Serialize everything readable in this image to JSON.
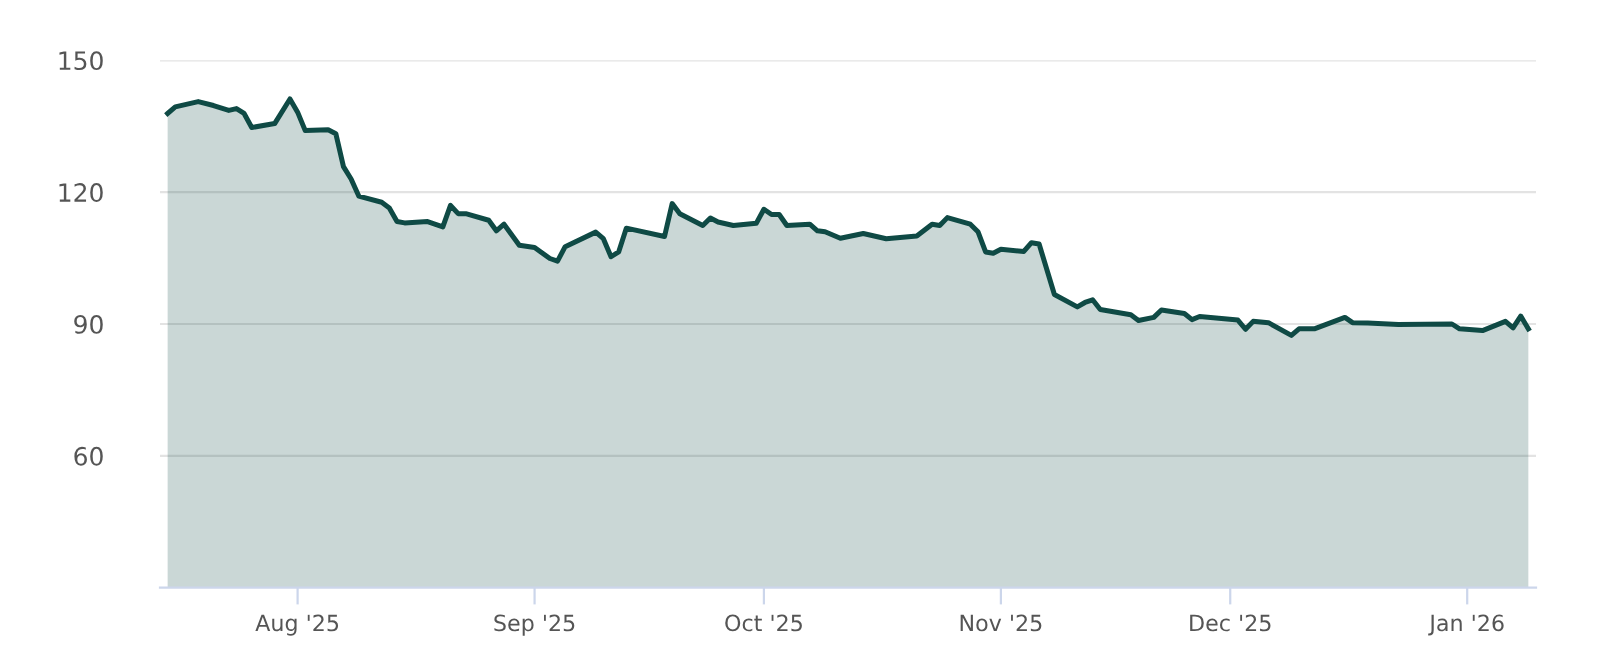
{
  "chart_data": {
    "type": "area",
    "x": [
      "2025-07-15",
      "2025-07-16",
      "2025-07-19",
      "2025-07-21",
      "2025-07-23",
      "2025-07-24",
      "2025-07-25",
      "2025-07-26",
      "2025-07-29",
      "2025-07-31",
      "2025-08-01",
      "2025-08-02",
      "2025-08-05",
      "2025-08-06",
      "2025-08-07",
      "2025-08-08",
      "2025-08-09",
      "2025-08-12",
      "2025-08-13",
      "2025-08-14",
      "2025-08-15",
      "2025-08-18",
      "2025-08-20",
      "2025-08-21",
      "2025-08-22",
      "2025-08-23",
      "2025-08-26",
      "2025-08-27",
      "2025-08-28",
      "2025-08-30",
      "2025-09-01",
      "2025-09-03",
      "2025-09-04",
      "2025-09-05",
      "2025-09-09",
      "2025-09-10",
      "2025-09-11",
      "2025-09-12",
      "2025-09-13",
      "2025-09-18",
      "2025-09-19",
      "2025-09-20",
      "2025-09-23",
      "2025-09-24",
      "2025-09-25",
      "2025-09-27",
      "2025-09-30",
      "2025-10-01",
      "2025-10-02",
      "2025-10-03",
      "2025-10-04",
      "2025-10-07",
      "2025-10-08",
      "2025-10-09",
      "2025-10-11",
      "2025-10-14",
      "2025-10-17",
      "2025-10-21",
      "2025-10-23",
      "2025-10-24",
      "2025-10-25",
      "2025-10-28",
      "2025-10-29",
      "2025-10-30",
      "2025-10-31",
      "2025-11-01",
      "2025-11-04",
      "2025-11-05",
      "2025-11-06",
      "2025-11-08",
      "2025-11-11",
      "2025-11-12",
      "2025-11-13",
      "2025-11-14",
      "2025-11-18",
      "2025-11-19",
      "2025-11-21",
      "2025-11-22",
      "2025-11-25",
      "2025-11-26",
      "2025-11-27",
      "2025-12-02",
      "2025-12-03",
      "2025-12-04",
      "2025-12-06",
      "2025-12-09",
      "2025-12-10",
      "2025-12-12",
      "2025-12-16",
      "2025-12-17",
      "2025-12-19",
      "2025-12-23",
      "2025-12-30",
      "2025-12-31",
      "2026-01-03",
      "2026-01-06",
      "2026-01-07",
      "2026-01-08",
      "2026-01-09"
    ],
    "series": [
      {
        "color": "#0f4a45",
        "values": [
          137.9,
          139.4,
          140.6,
          139.7,
          138.6,
          139.0,
          137.9,
          134.7,
          135.6,
          141.2,
          138.2,
          134.0,
          134.2,
          133.3,
          125.8,
          123.0,
          119.1,
          117.7,
          116.4,
          113.3,
          113.0,
          113.3,
          112.1,
          117.0,
          115.1,
          115.1,
          113.6,
          111.2,
          112.7,
          107.9,
          107.4,
          104.9,
          104.3,
          107.6,
          110.9,
          109.4,
          105.3,
          106.4,
          111.8,
          109.9,
          117.4,
          115.1,
          112.4,
          114.1,
          113.2,
          112.4,
          112.9,
          116.1,
          114.9,
          114.9,
          112.4,
          112.7,
          111.2,
          111.0,
          109.5,
          110.6,
          109.4,
          110.0,
          112.7,
          112.4,
          114.2,
          112.7,
          111.0,
          106.4,
          106.1,
          107.0,
          106.5,
          108.5,
          108.2,
          96.7,
          93.9,
          94.9,
          95.5,
          93.3,
          92.1,
          90.8,
          91.5,
          93.2,
          92.4,
          91.0,
          91.7,
          90.9,
          88.8,
          90.6,
          90.3,
          87.4,
          88.9,
          88.9,
          91.5,
          90.3,
          90.2,
          89.9,
          90.0,
          88.9,
          88.5,
          90.6,
          89.1,
          91.8,
          88.9
        ]
      }
    ],
    "xlim": [
      "2025-07-14",
      "2026-01-10"
    ],
    "xticks": [
      {
        "value": "2025-08-01",
        "label": "Aug '25"
      },
      {
        "value": "2025-09-01",
        "label": "Sep '25"
      },
      {
        "value": "2025-10-01",
        "label": "Oct '25"
      },
      {
        "value": "2025-11-01",
        "label": "Nov '25"
      },
      {
        "value": "2025-12-01",
        "label": "Dec '25"
      },
      {
        "value": "2026-01-01",
        "label": "Jan '26"
      }
    ],
    "ylim": [
      30,
      150
    ],
    "yticks": [
      60,
      90,
      120,
      150
    ],
    "grid": "y"
  }
}
